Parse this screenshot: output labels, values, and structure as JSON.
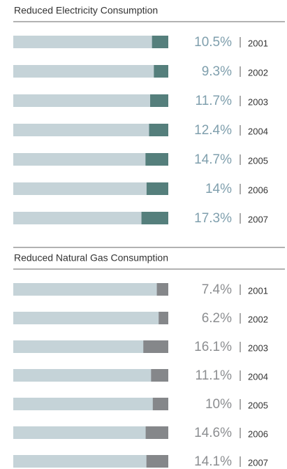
{
  "chart_data": [
    {
      "type": "bar",
      "title": "Reduced Electricity Consumption",
      "categories": [
        "2001",
        "2002",
        "2003",
        "2004",
        "2005",
        "2006",
        "2007"
      ],
      "values": [
        10.5,
        9.3,
        11.7,
        12.4,
        14.7,
        14,
        17.3
      ],
      "value_labels": [
        "10.5%",
        "9.3%",
        "11.7%",
        "12.4%",
        "14.7%",
        "14%",
        "17.3%"
      ],
      "xlim": [
        0,
        100
      ],
      "color": "#557f7c",
      "track_color": "#c5d3d8",
      "label_color": "#7f9fad"
    },
    {
      "type": "bar",
      "title": "Reduced Natural Gas Consumption",
      "categories": [
        "2001",
        "2002",
        "2003",
        "2004",
        "2005",
        "2006",
        "2007"
      ],
      "values": [
        7.4,
        6.2,
        16.1,
        11.1,
        10,
        14.6,
        14.1
      ],
      "value_labels": [
        "7.4%",
        "6.2%",
        "16.1%",
        "11.1%",
        "10%",
        "14.6%",
        "14.1%"
      ],
      "xlim": [
        0,
        100
      ],
      "color": "#85878a",
      "track_color": "#c5d3d8",
      "label_color": "#8c8e91"
    }
  ]
}
